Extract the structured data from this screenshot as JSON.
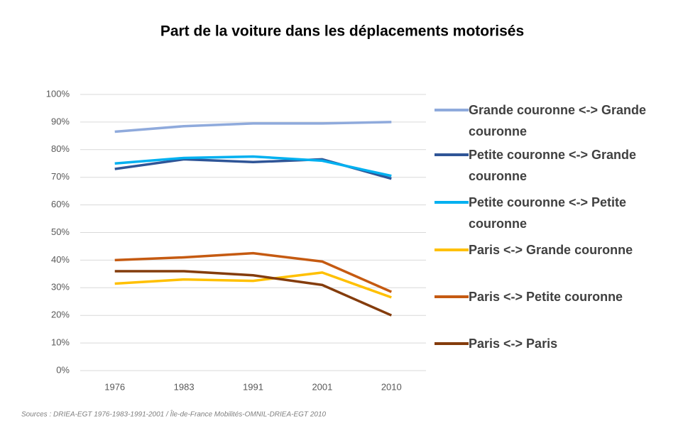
{
  "chart_data": {
    "type": "line",
    "title": "Part de la voiture dans les déplacements motorisés",
    "categories": [
      "1976",
      "1983",
      "1991",
      "2001",
      "2010"
    ],
    "series": [
      {
        "name": "Grande couronne <-> Grande couronne",
        "color": "#8faadc",
        "values": [
          86.5,
          88.5,
          89.5,
          89.5,
          90
        ]
      },
      {
        "name": "Petite couronne <-> Grande couronne",
        "color": "#2f5597",
        "values": [
          73,
          76.5,
          75.5,
          76.5,
          69.5
        ]
      },
      {
        "name": "Petite couronne <-> Petite couronne",
        "color": "#00b0f0",
        "values": [
          75,
          77,
          77.5,
          76,
          70.5
        ]
      },
      {
        "name": "Paris <-> Grande couronne",
        "color": "#ffc000",
        "values": [
          31.5,
          33,
          32.5,
          35.5,
          26.5
        ]
      },
      {
        "name": "Paris <-> Petite couronne",
        "color": "#c55a11",
        "values": [
          40,
          41,
          42.5,
          39.5,
          28.5
        ]
      },
      {
        "name": "Paris <-> Paris",
        "color": "#843c0c",
        "values": [
          36,
          36,
          34.5,
          31,
          20
        ]
      }
    ],
    "ylim": [
      0,
      100
    ],
    "yticks": [
      {
        "value": 0,
        "label": "0%"
      },
      {
        "value": 10,
        "label": "10%"
      },
      {
        "value": 20,
        "label": "20%"
      },
      {
        "value": 30,
        "label": "30%"
      },
      {
        "value": 40,
        "label": "40%"
      },
      {
        "value": 50,
        "label": "50%"
      },
      {
        "value": 60,
        "label": "60%"
      },
      {
        "value": 70,
        "label": "70%"
      },
      {
        "value": 80,
        "label": "80%"
      },
      {
        "value": 90,
        "label": "90%"
      },
      {
        "value": 100,
        "label": "100%"
      }
    ],
    "grid": true,
    "legend": "right",
    "source": "Sources : DRIEA-EGT 1976-1983-1991-2001 / Île-de-France Mobilités-OMNIL-DRIEA-EGT 2010"
  }
}
